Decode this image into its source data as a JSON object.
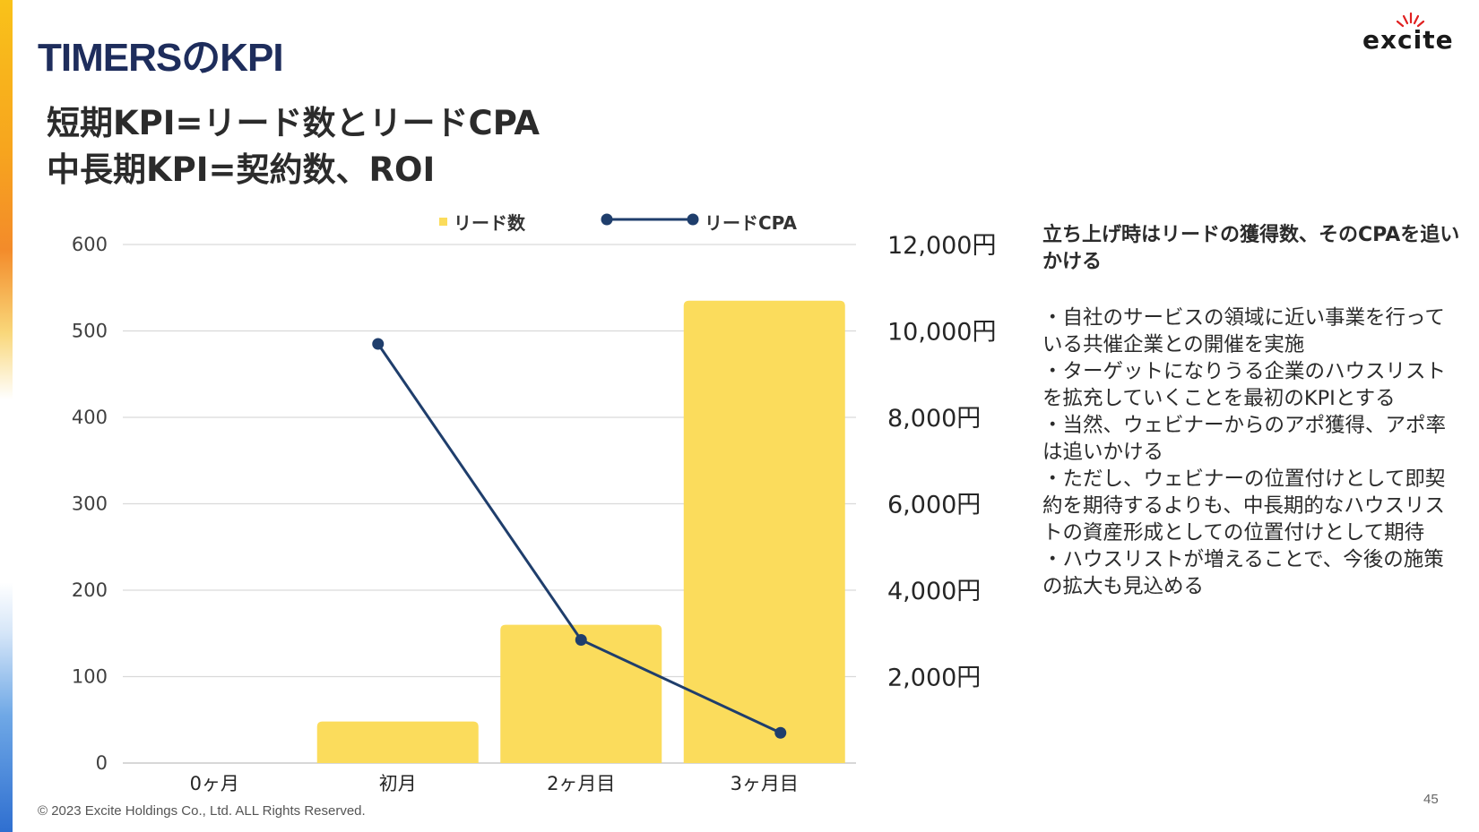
{
  "slide": {
    "title": "TIMERSのKPI",
    "logo_text": "excite",
    "headline": [
      "短期KPI=リード数とリードCPA",
      "中長期KPI=契約数、ROI"
    ],
    "footer": "© 2023 Excite Holdings Co., Ltd. ALL Rights Reserved.",
    "page_number": "45"
  },
  "side": {
    "heading": "立ち上げ時はリードの獲得数、そのCPAを追いかける",
    "bullets": [
      "・自社のサービスの領域に近い事業を行っている共催企業との開催を実施",
      "・ターゲットになりうる企業のハウスリストを拡充していくことを最初のKPIとする",
      "・当然、ウェビナーからのアポ獲得、アポ率は追いかける",
      "・ただし、ウェビナーの位置付けとして即契約を期待するよりも、中長期的なハウスリストの資産形成としての位置付けとして期待",
      "・ハウスリストが増えることで、今後の施策の拡大も見込める"
    ]
  },
  "colors": {
    "bar": "#fbdc5c",
    "line": "#1f3e6c",
    "title": "#1e2d5c",
    "grid": "#d9d9d9"
  },
  "chart_data": {
    "type": "bar",
    "categories": [
      "0ヶ月",
      "初月",
      "2ヶ月目",
      "3ヶ月目"
    ],
    "series": [
      {
        "name": "リード数",
        "type": "bar",
        "axis": "left",
        "values": [
          0,
          48,
          160,
          535
        ]
      },
      {
        "name": "リードCPA",
        "type": "line",
        "axis": "right",
        "values": [
          null,
          9700,
          2850,
          700
        ]
      }
    ],
    "ylim": [
      0,
      600
    ],
    "yticks": [
      "0",
      "100",
      "200",
      "300",
      "400",
      "500",
      "600"
    ],
    "y2lim": [
      0,
      12000
    ],
    "y2ticks": [
      "12,000円",
      "10,000円",
      "8,000円",
      "6,000円",
      "4,000円",
      "2,000円"
    ],
    "y2tick_values": [
      12000,
      10000,
      8000,
      6000,
      4000,
      2000
    ],
    "grid": true,
    "legend": "top"
  }
}
